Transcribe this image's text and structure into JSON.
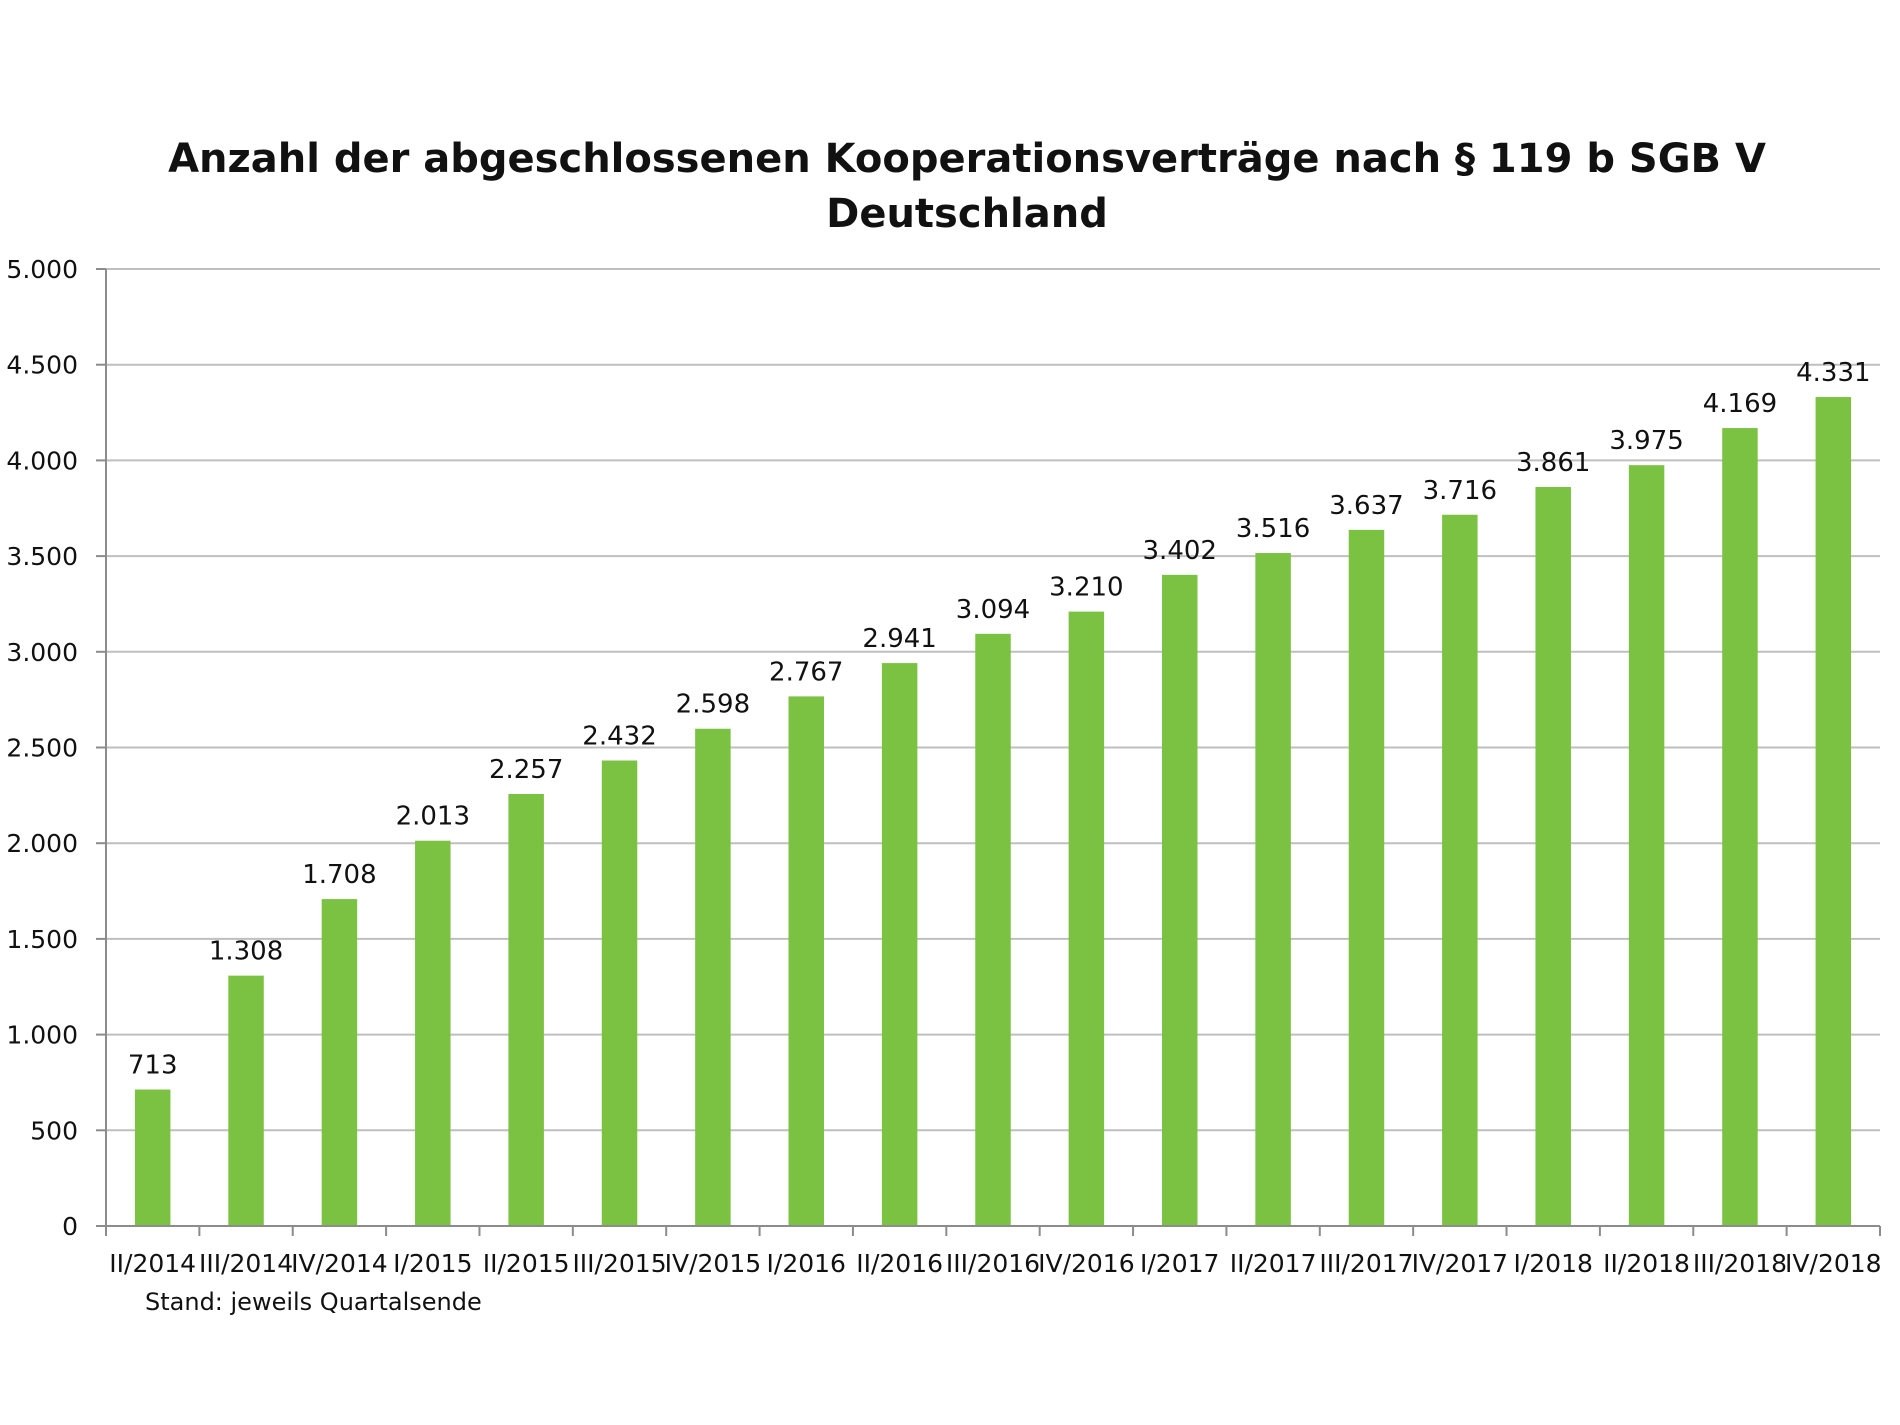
{
  "chart_data": {
    "type": "bar",
    "title_lines": [
      "Anzahl der abgeschlossenen Kooperationsverträge nach § 119 b SGB V",
      "Deutschland"
    ],
    "categories": [
      "II/2014",
      "III/2014",
      "IV/2014",
      "I/2015",
      "II/2015",
      "III/2015",
      "IV/2015",
      "I/2016",
      "II/2016",
      "III/2016",
      "IV/2016",
      "I/2017",
      "II/2017",
      "III/2017",
      "IV/2017",
      "I/2018",
      "II/2018",
      "III/2018",
      "IV/2018"
    ],
    "values": [
      713,
      1308,
      1708,
      2013,
      2257,
      2432,
      2598,
      2767,
      2941,
      3094,
      3210,
      3402,
      3516,
      3637,
      3716,
      3861,
      3975,
      4169,
      4331
    ],
    "value_labels": [
      "713",
      "1.308",
      "1.708",
      "2.013",
      "2.257",
      "2.432",
      "2.598",
      "2.767",
      "2.941",
      "3.094",
      "3.210",
      "3.402",
      "3.516",
      "3.637",
      "3.716",
      "3.861",
      "3.975",
      "4.169",
      "4.331"
    ],
    "ylim": [
      0,
      5000
    ],
    "yticks": [
      0,
      500,
      1000,
      1500,
      2000,
      2500,
      3000,
      3500,
      4000,
      4500,
      5000
    ],
    "ytick_labels": [
      "0",
      "500",
      "1.000",
      "1.500",
      "2.000",
      "2.500",
      "3.000",
      "3.500",
      "4.000",
      "4.500",
      "5.000"
    ],
    "xlabel": "",
    "ylabel": "",
    "note": "Stand: jeweils Quartalsende",
    "grid": true,
    "legend": "none",
    "bar_color": "#7bc142",
    "grid_color": "#bfbfbf",
    "axis_color": "#8c8c8c"
  }
}
